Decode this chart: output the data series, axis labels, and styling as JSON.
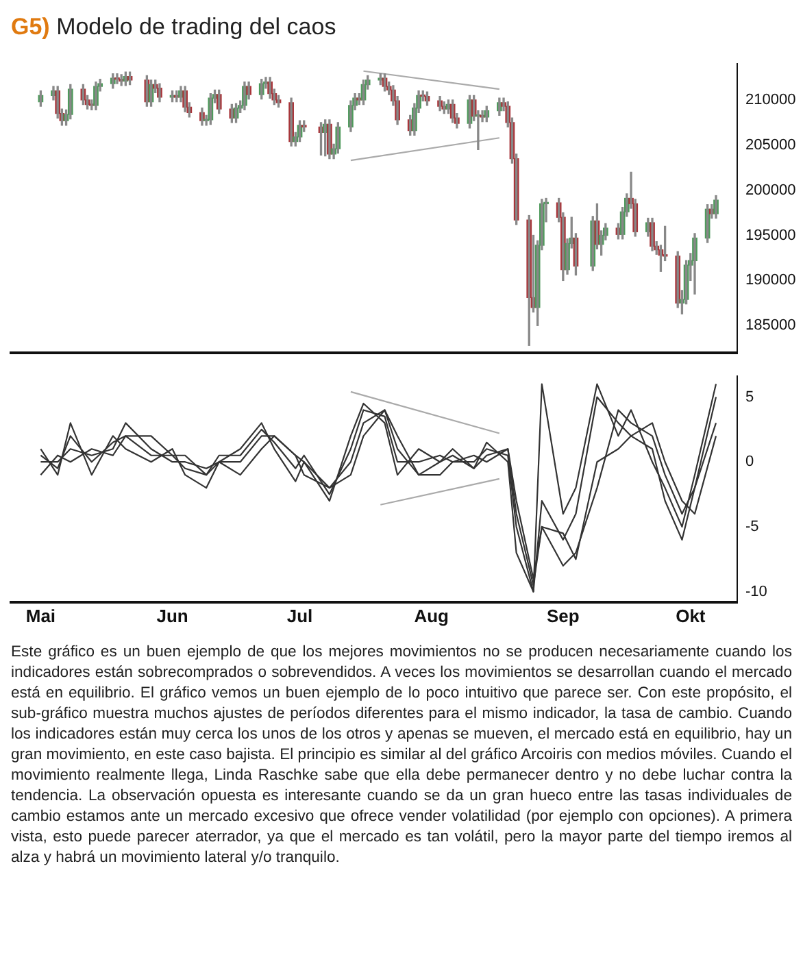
{
  "chart_data": [
    {
      "type": "candlestick",
      "title": "G5) Modelo de trading del caos",
      "tick_labels": "y",
      "xlim": [
        "--04-24",
        "--10-12"
      ],
      "ylim": [
        182000,
        214000
      ],
      "yticks": [
        185000,
        190000,
        195000,
        200000,
        205000,
        210000
      ],
      "x": [
        "--05-01",
        "--05-04",
        "--05-05",
        "--05-06",
        "--05-07",
        "--05-08",
        "--05-11",
        "--05-12",
        "--05-13",
        "--05-14",
        "--05-15",
        "--05-18",
        "--05-19",
        "--05-20",
        "--05-21",
        "--05-22",
        "--05-26",
        "--05-27",
        "--05-28",
        "--05-29",
        "--06-01",
        "--06-02",
        "--06-03",
        "--06-04",
        "--06-05",
        "--06-08",
        "--06-09",
        "--06-10",
        "--06-11",
        "--06-12",
        "--06-15",
        "--06-16",
        "--06-17",
        "--06-18",
        "--06-19",
        "--06-22",
        "--06-23",
        "--06-24",
        "--06-25",
        "--06-26",
        "--06-29",
        "--06-30",
        "--07-01",
        "--07-02",
        "--07-06",
        "--07-07",
        "--07-08",
        "--07-09",
        "--07-10",
        "--07-13",
        "--07-14",
        "--07-15",
        "--07-16",
        "--07-17",
        "--07-20",
        "--07-21",
        "--07-22",
        "--07-23",
        "--07-24",
        "--07-27",
        "--07-28",
        "--07-29",
        "--07-30",
        "--07-31",
        "--08-03",
        "--08-04",
        "--08-05",
        "--08-06",
        "--08-07",
        "--08-10",
        "--08-11",
        "--08-12",
        "--08-13",
        "--08-14",
        "--08-17",
        "--08-18",
        "--08-19",
        "--08-20",
        "--08-21",
        "--08-24",
        "--08-25",
        "--08-26",
        "--08-27",
        "--08-28",
        "--08-31",
        "--09-01",
        "--09-02",
        "--09-03",
        "--09-04",
        "--09-08",
        "--09-09",
        "--09-10",
        "--09-11",
        "--09-14",
        "--09-15",
        "--09-16",
        "--09-17",
        "--09-18",
        "--09-21",
        "--09-22",
        "--09-23",
        "--09-24",
        "--09-25",
        "--09-28",
        "--09-29",
        "--09-30",
        "--10-01",
        "--10-02",
        "--10-05",
        "--10-06",
        "--10-07"
      ],
      "ohlc": [
        [
          209800,
          211000,
          209300,
          210500
        ],
        [
          210500,
          211500,
          210000,
          211000
        ],
        [
          211000,
          211500,
          208000,
          208500
        ],
        [
          208500,
          209000,
          207200,
          207700
        ],
        [
          207700,
          208900,
          207200,
          208400
        ],
        [
          208400,
          211700,
          207900,
          211200
        ],
        [
          211200,
          211700,
          209500,
          210000
        ],
        [
          210000,
          210500,
          209000,
          209500
        ],
        [
          209500,
          210000,
          208900,
          209400
        ],
        [
          209400,
          212000,
          208900,
          211500
        ],
        [
          211500,
          212300,
          211000,
          211800
        ],
        [
          211800,
          212900,
          211300,
          212400
        ],
        [
          212400,
          212900,
          211800,
          212300
        ],
        [
          212300,
          212800,
          211600,
          212100
        ],
        [
          212100,
          213100,
          211600,
          212600
        ],
        [
          212600,
          213100,
          211700,
          212200
        ],
        [
          212200,
          212700,
          209300,
          209800
        ],
        [
          209800,
          212200,
          209300,
          211700
        ],
        [
          211700,
          212200,
          210800,
          211300
        ],
        [
          211300,
          211800,
          209800,
          210300
        ],
        [
          210300,
          211000,
          209800,
          210500
        ],
        [
          210500,
          211000,
          209800,
          210300
        ],
        [
          210300,
          211500,
          209800,
          211000
        ],
        [
          211000,
          211500,
          208700,
          209200
        ],
        [
          209200,
          209700,
          208100,
          208600
        ],
        [
          208600,
          209100,
          207200,
          207700
        ],
        [
          207700,
          208300,
          207200,
          207800
        ],
        [
          207800,
          210700,
          207300,
          210200
        ],
        [
          210200,
          211100,
          209700,
          210600
        ],
        [
          210600,
          211100,
          208500,
          209000
        ],
        [
          209000,
          209500,
          207500,
          208000
        ],
        [
          208000,
          209600,
          207500,
          209100
        ],
        [
          209100,
          209900,
          208600,
          209400
        ],
        [
          209400,
          212000,
          208900,
          211500
        ],
        [
          211500,
          212000,
          210100,
          210600
        ],
        [
          210600,
          212300,
          210100,
          211800
        ],
        [
          211800,
          212500,
          211300,
          212000
        ],
        [
          212000,
          212500,
          210200,
          210700
        ],
        [
          210700,
          211200,
          209500,
          210000
        ],
        [
          210000,
          210500,
          209200,
          209700
        ],
        [
          209700,
          210200,
          204900,
          205400
        ],
        [
          205400,
          206400,
          204900,
          205900
        ],
        [
          205900,
          207700,
          205400,
          207200
        ],
        [
          207200,
          207700,
          206500,
          207000
        ],
        [
          207000,
          207500,
          203900,
          206400
        ],
        [
          206400,
          207800,
          203800,
          207300
        ],
        [
          207300,
          207800,
          203500,
          204000
        ],
        [
          204000,
          205100,
          203500,
          204600
        ],
        [
          204600,
          207500,
          204100,
          207000
        ],
        [
          207000,
          209900,
          206500,
          209400
        ],
        [
          209400,
          210700,
          208900,
          210200
        ],
        [
          210200,
          210700,
          209500,
          210000
        ],
        [
          210000,
          212200,
          209500,
          211700
        ],
        [
          211700,
          212700,
          211200,
          212200
        ],
        [
          212200,
          212900,
          211700,
          212400
        ],
        [
          212400,
          212900,
          211000,
          211500
        ],
        [
          211500,
          212000,
          210600,
          211100
        ],
        [
          211100,
          211600,
          209400,
          209900
        ],
        [
          209900,
          210400,
          207300,
          207800
        ],
        [
          207800,
          208300,
          206100,
          206600
        ],
        [
          206600,
          209600,
          206100,
          209100
        ],
        [
          209100,
          211000,
          208600,
          210500
        ],
        [
          210500,
          211000,
          209900,
          210400
        ],
        [
          210400,
          210900,
          209400,
          209900
        ],
        [
          209900,
          210400,
          208800,
          209300
        ],
        [
          209300,
          209800,
          208500,
          209000
        ],
        [
          209000,
          210000,
          208500,
          209500
        ],
        [
          209500,
          210000,
          207500,
          208000
        ],
        [
          208000,
          208500,
          206900,
          207400
        ],
        [
          207400,
          210500,
          206900,
          210000
        ],
        [
          210000,
          210500,
          207700,
          208200
        ],
        [
          208200,
          208800,
          204500,
          208300
        ],
        [
          208300,
          208800,
          207600,
          208100
        ],
        [
          208100,
          209300,
          207600,
          208800
        ],
        [
          208800,
          210200,
          208300,
          209700
        ],
        [
          209700,
          210200,
          208800,
          209300
        ],
        [
          209300,
          209800,
          207000,
          207500
        ],
        [
          207500,
          208000,
          203000,
          203500
        ],
        [
          203500,
          204000,
          196200,
          196700
        ],
        [
          196700,
          197200,
          182800,
          188100
        ],
        [
          188100,
          195000,
          186500,
          187000
        ],
        [
          187000,
          194400,
          185000,
          193900
        ],
        [
          193900,
          199000,
          193400,
          198500
        ],
        [
          198500,
          199100,
          196500,
          198600
        ],
        [
          198600,
          199100,
          196500,
          197000
        ],
        [
          197000,
          197500,
          190000,
          191200
        ],
        [
          191200,
          194600,
          190700,
          194100
        ],
        [
          194100,
          197000,
          193600,
          194700
        ],
        [
          194700,
          195200,
          190600,
          191600
        ],
        [
          191600,
          197100,
          191100,
          196600
        ],
        [
          196600,
          198500,
          193500,
          194000
        ],
        [
          194000,
          195500,
          192800,
          195000
        ],
        [
          195000,
          196300,
          194500,
          195800
        ],
        [
          195800,
          196300,
          194600,
          195100
        ],
        [
          195100,
          198100,
          194600,
          197600
        ],
        [
          197600,
          199600,
          197100,
          199100
        ],
        [
          199100,
          202000,
          198000,
          198500
        ],
        [
          198500,
          199000,
          194900,
          195400
        ],
        [
          195400,
          196900,
          194900,
          196400
        ],
        [
          196400,
          196900,
          193300,
          193800
        ],
        [
          193800,
          194300,
          192900,
          193400
        ],
        [
          193400,
          193900,
          191000,
          192800
        ],
        [
          192800,
          196000,
          192200,
          192700
        ],
        [
          192700,
          193200,
          187000,
          187500
        ],
        [
          187500,
          188900,
          186300,
          187900
        ],
        [
          187900,
          192200,
          187400,
          191700
        ],
        [
          191700,
          193000,
          190000,
          192200
        ],
        [
          192200,
          195200,
          188500,
          194700
        ],
        [
          194700,
          198400,
          194200,
          197900
        ],
        [
          197900,
          198400,
          196900,
          197400
        ],
        [
          197400,
          199400,
          196900,
          198900
        ]
      ],
      "series": [
        {
          "type": "line",
          "color": "#aaaaaa",
          "x": [
            "--07-16",
            "--08-17"
          ],
          "values": [
            213200,
            211200
          ]
        },
        {
          "type": "line",
          "color": "#aaaaaa",
          "x": [
            "--07-13",
            "--08-17"
          ],
          "values": [
            203300,
            205800
          ]
        }
      ]
    },
    {
      "type": "line",
      "xlim": [
        "--04-24",
        "--10-12"
      ],
      "ylim": [
        -10.8,
        6.6
      ],
      "yticks": [
        -10,
        -5,
        0,
        5
      ],
      "xticks": [
        {
          "value": "--05-01",
          "label": "Mai"
        },
        {
          "value": "--06-01",
          "label": "Jun"
        },
        {
          "value": "--07-01",
          "label": "Jul"
        },
        {
          "value": "--08-01",
          "label": "Aug"
        },
        {
          "value": "--09-01",
          "label": "Sep"
        },
        {
          "value": "--10-01",
          "label": "Okt"
        }
      ],
      "x": [
        "--05-01",
        "--05-05",
        "--05-08",
        "--05-13",
        "--05-18",
        "--05-21",
        "--05-27",
        "--06-01",
        "--06-04",
        "--06-09",
        "--06-12",
        "--06-17",
        "--06-22",
        "--06-25",
        "--06-30",
        "--07-02",
        "--07-08",
        "--07-13",
        "--07-16",
        "--07-21",
        "--07-24",
        "--07-29",
        "--08-03",
        "--08-06",
        "--08-11",
        "--08-14",
        "--08-19",
        "--08-21",
        "--08-25",
        "--08-27",
        "--09-01",
        "--09-04",
        "--09-09",
        "--09-14",
        "--09-17",
        "--09-22",
        "--09-25",
        "--09-29",
        "--10-02",
        "--10-07"
      ],
      "series": [
        {
          "color": "#333333",
          "values": [
            1,
            -1,
            3,
            -1,
            2,
            1,
            0,
            1,
            -1,
            -2,
            0,
            1,
            3,
            1,
            -1.5,
            0,
            -3,
            2,
            4.5,
            3,
            -1,
            1,
            0,
            0.5,
            -0.5,
            1.5,
            0,
            -7,
            -10,
            6,
            -4,
            -2,
            6,
            2,
            4,
            0,
            -2,
            -5,
            -1,
            6
          ]
        },
        {
          "color": "#333333",
          "values": [
            0.5,
            -0.5,
            2,
            0,
            1.5,
            2,
            0.5,
            0.5,
            -0.5,
            -1,
            0.5,
            0.5,
            2.5,
            1.5,
            -0.5,
            0.5,
            -2.5,
            1,
            4,
            3.5,
            0,
            0,
            0.5,
            0,
            0,
            1,
            0.5,
            -5,
            -10,
            -3,
            -6,
            -4,
            5,
            3,
            2,
            1,
            -3,
            -6,
            -2,
            5
          ]
        },
        {
          "color": "#333333",
          "values": [
            0,
            0,
            1,
            0.5,
            1,
            3,
            1,
            0,
            0,
            -0.5,
            0,
            0,
            2,
            2,
            0.5,
            0,
            -2,
            0,
            3,
            4,
            1,
            -1,
            0,
            1,
            -0.5,
            0.5,
            1,
            -4,
            -9.5,
            -5,
            -8,
            -7,
            -2,
            4,
            3,
            2,
            -1,
            -4,
            -2,
            3
          ]
        },
        {
          "color": "#333333",
          "values": [
            -1,
            0.5,
            0,
            1,
            0.5,
            2,
            2,
            0.5,
            0.5,
            -1,
            0,
            -1,
            1,
            2,
            0.5,
            -1,
            -2,
            -1,
            2,
            4,
            2,
            -1,
            -1,
            0,
            0.5,
            0,
            1,
            -3,
            -9,
            -5,
            -5.5,
            -7.5,
            0,
            1,
            2,
            3,
            0,
            -3,
            -4,
            2
          ]
        },
        {
          "color": "#aaaaaa",
          "x": [
            "--07-13",
            "--08-17"
          ],
          "values": [
            5.4,
            2.2
          ]
        },
        {
          "color": "#aaaaaa",
          "x": [
            "--07-20",
            "--08-17"
          ],
          "values": [
            -3.3,
            -1.3
          ]
        }
      ],
      "annotations": [
        "Este gráfico es un buen ejemplo de que los mejores movimientos no se producen necesariamente cuando los indicadores están sobrecomprados o sobrevendidos. A veces los movimientos se desarrollan cuando el mercado está en equilibrio. El gráfico vemos un buen ejemplo de lo poco intuitivo que parece ser. Con este propósito, el sub-gráfico muestra muchos ajustes de períodos diferentes para el mismo indicador, la tasa de cambio. Cuando los indicadores están muy cerca los unos de los otros y apenas se mueven, el mercado está en equilibrio, hay un gran movimiento, en este caso bajista. El principio es similar al del gráfico Arcoiris con medios móviles. Cuando el movimiento realmente llega, Linda Raschke sabe que ella debe permanecer dentro y no debe luchar contra la tendencia. La observación opuesta es interesante cuando se da un gran hueco entre las tasas individuales de cambio estamos ante un mercado excesivo que ofrece vender volatilidad (por ejemplo con opciones). A primera vista, esto puede parecer aterrador, ya que el mercado es tan volátil, pero la mayor parte del tiempo iremos al alza y habrá un movimiento lateral y/o tranquilo."
      ]
    }
  ]
}
